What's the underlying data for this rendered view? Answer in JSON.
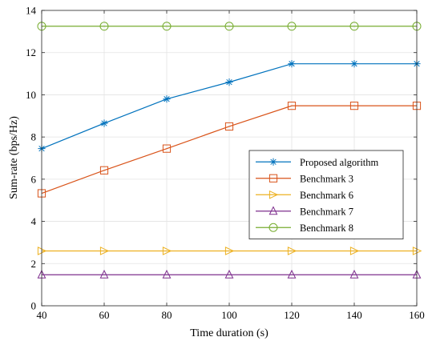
{
  "chart_data": {
    "type": "line",
    "xlabel": "Time duration (s)",
    "ylabel": "Sum-rate (bps/Hz)",
    "xlim": [
      40,
      160
    ],
    "ylim": [
      0,
      14
    ],
    "xticks": [
      40,
      60,
      80,
      100,
      120,
      140,
      160
    ],
    "yticks": [
      0,
      2,
      4,
      6,
      8,
      10,
      12,
      14
    ],
    "grid": true,
    "legend_position": "right",
    "x": [
      40,
      60,
      80,
      100,
      120,
      140,
      160
    ],
    "series": [
      {
        "name": "Proposed algorithm",
        "values": [
          7.45,
          8.65,
          9.8,
          10.6,
          11.47,
          11.47,
          11.47
        ],
        "color": "#0072BD",
        "marker": "asterisk"
      },
      {
        "name": "Benchmark 3",
        "values": [
          5.33,
          6.42,
          7.45,
          8.5,
          9.48,
          9.48,
          9.48
        ],
        "color": "#D95319",
        "marker": "square"
      },
      {
        "name": "Benchmark 6",
        "values": [
          2.6,
          2.6,
          2.6,
          2.6,
          2.6,
          2.6,
          2.6
        ],
        "color": "#EDB120",
        "marker": "triangle-right"
      },
      {
        "name": "Benchmark 7",
        "values": [
          1.47,
          1.47,
          1.47,
          1.47,
          1.47,
          1.47,
          1.47
        ],
        "color": "#7E2F8E",
        "marker": "triangle-up"
      },
      {
        "name": "Benchmark 8",
        "values": [
          13.25,
          13.25,
          13.25,
          13.25,
          13.25,
          13.25,
          13.25
        ],
        "color": "#77AC30",
        "marker": "circle"
      }
    ]
  }
}
